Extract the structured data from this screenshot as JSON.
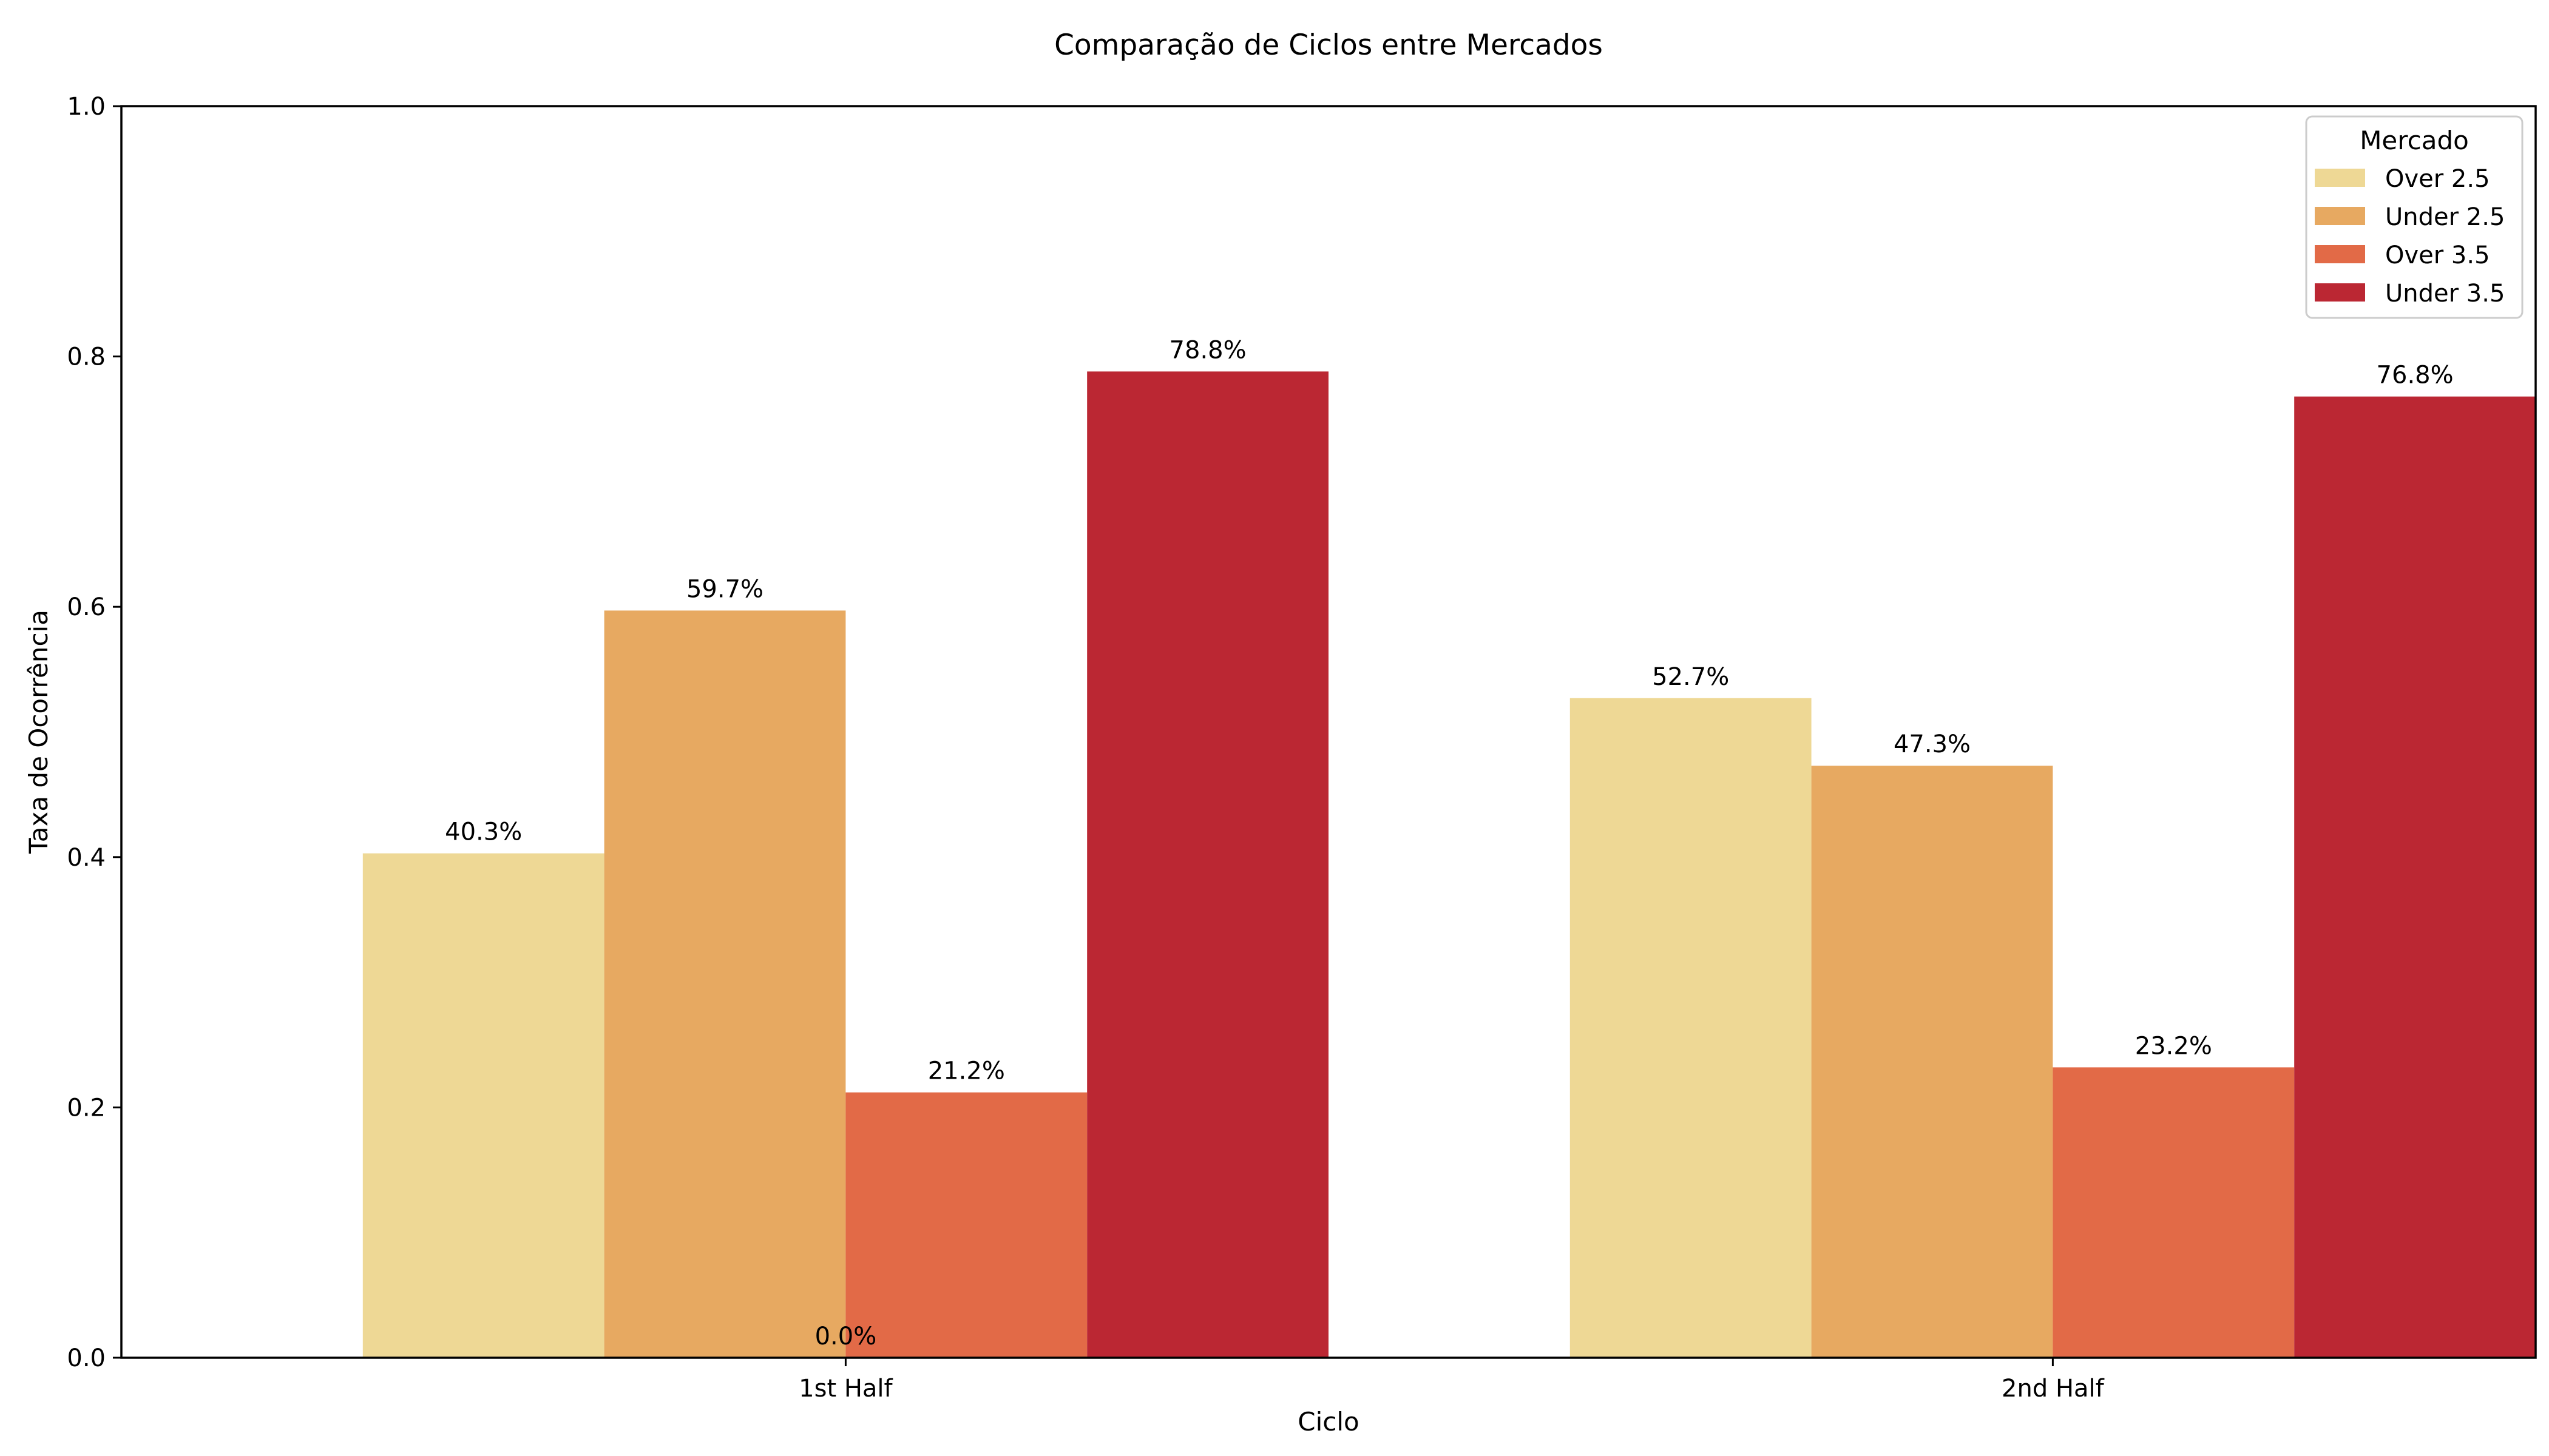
{
  "chart_data": {
    "type": "bar",
    "title": "Comparação de Ciclos entre Mercados",
    "xlabel": "Ciclo",
    "ylabel": "Taxa de Ocorrência",
    "ylim": [
      0,
      1.0
    ],
    "yticks": [
      "0.0",
      "0.2",
      "0.4",
      "0.6",
      "0.8",
      "1.0"
    ],
    "categories": [
      "1st Half",
      "2nd Half"
    ],
    "grid": false,
    "legend": {
      "title": "Mercado",
      "placement": "top-right"
    },
    "series": [
      {
        "name": "Over 2.5",
        "color": "#eed895",
        "values": [
          0.403,
          0.527
        ],
        "labels": [
          "40.3%",
          "52.7%"
        ]
      },
      {
        "name": "Under 2.5",
        "color": "#e7a961",
        "values": [
          0.597,
          0.473
        ],
        "labels": [
          "59.7%",
          "47.3%"
        ]
      },
      {
        "name": "Over 3.5",
        "color": "#e26a47",
        "values": [
          0.212,
          0.232
        ],
        "labels": [
          "21.2%",
          "23.2%"
        ]
      },
      {
        "name": "Under 3.5",
        "color": "#bb2733",
        "values": [
          0.788,
          0.768
        ],
        "labels": [
          "78.8%",
          "76.8%"
        ]
      }
    ],
    "annotations": [
      {
        "text": "0.0%",
        "x": "1st Half",
        "y": 0.0
      }
    ]
  }
}
